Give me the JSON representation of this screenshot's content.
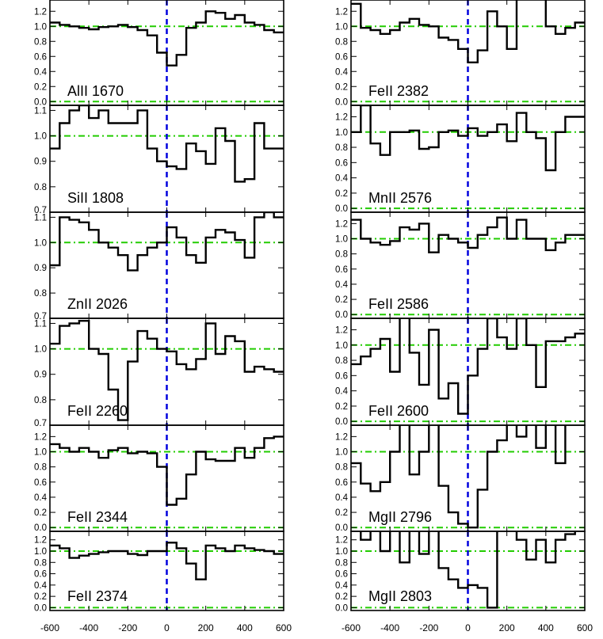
{
  "figure": {
    "type": "stacked absorption-line velocity profiles",
    "x_axis": {
      "range": [
        -600,
        600
      ],
      "ticks": [
        -600,
        -400,
        -200,
        0,
        200,
        400,
        600
      ],
      "tick_labels": [
        "-600",
        "-400",
        "-200",
        "0",
        "200",
        "400",
        "600"
      ],
      "label": ""
    },
    "colors": {
      "spectrum": "#000000",
      "zero_velocity_line": "#0000dd",
      "reference_levels": "#22cc00",
      "frame": "#000000"
    },
    "reference_line_style": "dash-dot",
    "zero_line_style": "dashed"
  },
  "chart_data": [
    {
      "type": "line",
      "panel": "AlII 1670",
      "column": "left",
      "row": 1,
      "ylim": [
        -0.05,
        1.35
      ],
      "yticks": [
        0.0,
        0.2,
        0.4,
        0.6,
        0.8,
        1.0,
        1.2
      ],
      "ytick_labels": [
        "0.0",
        "0.2",
        "0.4",
        "0.6",
        "0.8",
        "1.0",
        "1.2"
      ],
      "reference_levels": [
        0.0,
        1.0
      ],
      "x": [
        -600,
        -550,
        -500,
        -450,
        -400,
        -350,
        -300,
        -250,
        -200,
        -150,
        -100,
        -50,
        0,
        50,
        100,
        150,
        200,
        250,
        300,
        350,
        400,
        450,
        500,
        550
      ],
      "values": [
        1.05,
        1.02,
        1.0,
        0.98,
        0.96,
        0.99,
        1.0,
        1.02,
        0.99,
        0.95,
        0.88,
        0.65,
        0.48,
        0.62,
        0.98,
        1.05,
        1.2,
        1.18,
        1.1,
        1.15,
        1.05,
        1.02,
        0.95,
        0.92
      ]
    },
    {
      "type": "line",
      "panel": "SiII 1808",
      "column": "left",
      "row": 2,
      "ylim": [
        0.7,
        1.12
      ],
      "yticks": [
        0.7,
        0.8,
        0.9,
        1.0,
        1.1
      ],
      "ytick_labels": [
        "0.7",
        "0.8",
        "0.9",
        "1.0",
        "1.1"
      ],
      "reference_levels": [
        1.0
      ],
      "x": [
        -600,
        -550,
        -500,
        -450,
        -400,
        -350,
        -300,
        -250,
        -200,
        -150,
        -100,
        -50,
        0,
        50,
        100,
        150,
        200,
        250,
        300,
        350,
        400,
        450,
        500,
        550
      ],
      "values": [
        0.95,
        1.05,
        1.1,
        1.12,
        1.07,
        1.1,
        1.05,
        1.05,
        1.05,
        1.1,
        0.95,
        0.9,
        0.88,
        0.87,
        0.97,
        0.94,
        0.89,
        1.03,
        0.98,
        0.82,
        0.83,
        1.05,
        0.95,
        0.95
      ]
    },
    {
      "type": "line",
      "panel": "ZnII 2026",
      "column": "left",
      "row": 3,
      "ylim": [
        0.7,
        1.12
      ],
      "yticks": [
        0.7,
        0.8,
        0.9,
        1.0,
        1.1
      ],
      "ytick_labels": [
        "0.7",
        "0.8",
        "0.9",
        "1.0",
        "1.1"
      ],
      "reference_levels": [
        1.0
      ],
      "x": [
        -600,
        -550,
        -500,
        -450,
        -400,
        -350,
        -300,
        -250,
        -200,
        -150,
        -100,
        -50,
        0,
        50,
        100,
        150,
        200,
        250,
        300,
        350,
        400,
        450,
        500,
        550
      ],
      "values": [
        0.91,
        1.1,
        1.09,
        1.08,
        1.05,
        1.0,
        0.98,
        0.95,
        0.89,
        0.95,
        0.98,
        1.0,
        1.06,
        1.02,
        0.95,
        0.92,
        1.02,
        1.05,
        1.04,
        1.01,
        0.94,
        1.1,
        1.12,
        1.1
      ]
    },
    {
      "type": "line",
      "panel": "FeII 2260",
      "column": "left",
      "row": 4,
      "ylim": [
        0.7,
        1.12
      ],
      "yticks": [
        0.7,
        0.8,
        0.9,
        1.0,
        1.1
      ],
      "ytick_labels": [
        "0.7",
        "0.8",
        "0.9",
        "1.0",
        "1.1"
      ],
      "reference_levels": [
        1.0
      ],
      "x": [
        -600,
        -550,
        -500,
        -450,
        -400,
        -350,
        -300,
        -250,
        -200,
        -150,
        -100,
        -50,
        0,
        50,
        100,
        150,
        200,
        250,
        300,
        350,
        400,
        450,
        500,
        550
      ],
      "values": [
        1.02,
        1.09,
        1.1,
        1.11,
        1.0,
        0.98,
        0.84,
        0.72,
        0.95,
        1.07,
        1.04,
        1.0,
        0.99,
        0.94,
        0.92,
        0.96,
        1.1,
        0.98,
        1.05,
        1.03,
        0.91,
        0.93,
        0.92,
        0.91
      ]
    },
    {
      "type": "line",
      "panel": "FeII 2344",
      "column": "left",
      "row": 5,
      "ylim": [
        -0.05,
        1.35
      ],
      "yticks": [
        0.0,
        0.2,
        0.4,
        0.6,
        0.8,
        1.0,
        1.2
      ],
      "ytick_labels": [
        "0.0",
        "0.2",
        "0.4",
        "0.6",
        "0.8",
        "1.0",
        "1.2"
      ],
      "reference_levels": [
        0.0,
        1.0
      ],
      "x": [
        -600,
        -550,
        -500,
        -450,
        -400,
        -350,
        -300,
        -250,
        -200,
        -150,
        -100,
        -50,
        0,
        50,
        100,
        150,
        200,
        250,
        300,
        350,
        400,
        450,
        500,
        550
      ],
      "values": [
        1.1,
        1.05,
        1.0,
        1.05,
        1.0,
        0.92,
        1.02,
        1.05,
        0.98,
        1.0,
        0.98,
        0.8,
        0.3,
        0.38,
        0.7,
        1.0,
        0.9,
        0.88,
        0.88,
        1.05,
        0.92,
        1.05,
        1.18,
        1.2
      ]
    },
    {
      "type": "line",
      "panel": "FeII 2374",
      "column": "left",
      "row": 6,
      "ylim": [
        -0.05,
        1.35
      ],
      "yticks": [
        0.0,
        0.2,
        0.4,
        0.6,
        0.8,
        1.0,
        1.2
      ],
      "ytick_labels": [
        "0.0",
        "0.2",
        "0.4",
        "0.6",
        "0.8",
        "1.0",
        "1.2"
      ],
      "reference_levels": [
        0.0,
        1.0
      ],
      "x": [
        -600,
        -550,
        -500,
        -450,
        -400,
        -350,
        -300,
        -250,
        -200,
        -150,
        -100,
        -50,
        0,
        50,
        100,
        150,
        200,
        250,
        300,
        350,
        400,
        450,
        500,
        550
      ],
      "values": [
        1.1,
        1.05,
        0.88,
        0.92,
        0.95,
        0.98,
        1.0,
        1.0,
        0.95,
        0.93,
        1.0,
        1.0,
        1.15,
        1.05,
        0.78,
        0.5,
        1.1,
        1.05,
        1.0,
        1.1,
        1.05,
        1.02,
        1.0,
        0.95
      ]
    },
    {
      "type": "line",
      "panel": "FeII 2382",
      "column": "right",
      "row": 1,
      "ylim": [
        -0.05,
        1.35
      ],
      "yticks": [
        0.0,
        0.2,
        0.4,
        0.6,
        0.8,
        1.0,
        1.2
      ],
      "ytick_labels": [
        "0.0",
        "0.2",
        "0.4",
        "0.6",
        "0.8",
        "1.0",
        "1.2"
      ],
      "reference_levels": [
        0.0,
        1.0
      ],
      "x": [
        -600,
        -550,
        -500,
        -450,
        -400,
        -350,
        -300,
        -250,
        -200,
        -150,
        -100,
        -50,
        0,
        50,
        100,
        150,
        200,
        250,
        300,
        350,
        400,
        450,
        500,
        550
      ],
      "values": [
        1.3,
        0.98,
        0.95,
        0.9,
        0.95,
        1.05,
        1.1,
        1.02,
        1.0,
        0.85,
        0.82,
        0.7,
        0.52,
        0.68,
        1.2,
        1.0,
        0.7,
        1.4,
        1.6,
        1.8,
        1.0,
        0.9,
        0.98,
        1.05
      ]
    },
    {
      "type": "line",
      "panel": "MnII 2576",
      "column": "right",
      "row": 2,
      "ylim": [
        -0.05,
        1.35
      ],
      "yticks": [
        0.0,
        0.2,
        0.4,
        0.6,
        0.8,
        1.0,
        1.2
      ],
      "ytick_labels": [
        "0.0",
        "0.2",
        "0.4",
        "0.6",
        "0.8",
        "1.0",
        "1.2"
      ],
      "reference_levels": [
        0.0,
        1.0
      ],
      "x": [
        -600,
        -550,
        -500,
        -450,
        -400,
        -350,
        -300,
        -250,
        -200,
        -150,
        -100,
        -50,
        0,
        50,
        100,
        150,
        200,
        250,
        300,
        350,
        400,
        450,
        500,
        550
      ],
      "values": [
        1.0,
        1.35,
        0.85,
        0.7,
        1.0,
        1.0,
        1.02,
        0.78,
        0.8,
        1.0,
        1.02,
        0.95,
        1.05,
        0.95,
        1.0,
        1.1,
        0.88,
        1.25,
        1.0,
        0.92,
        0.5,
        1.0,
        1.2,
        1.2
      ]
    },
    {
      "type": "line",
      "panel": "FeII 2586",
      "column": "right",
      "row": 3,
      "ylim": [
        -0.05,
        1.35
      ],
      "yticks": [
        0.0,
        0.2,
        0.4,
        0.6,
        0.8,
        1.0,
        1.2
      ],
      "ytick_labels": [
        "0.0",
        "0.2",
        "0.4",
        "0.6",
        "0.8",
        "1.0",
        "1.2"
      ],
      "reference_levels": [
        0.0,
        1.0
      ],
      "x": [
        -600,
        -550,
        -500,
        -450,
        -400,
        -350,
        -300,
        -250,
        -200,
        -150,
        -100,
        -50,
        0,
        50,
        100,
        150,
        200,
        250,
        300,
        350,
        400,
        450,
        500,
        550
      ],
      "values": [
        1.25,
        1.0,
        0.95,
        0.92,
        0.97,
        1.15,
        1.12,
        1.2,
        0.82,
        1.05,
        1.0,
        0.95,
        0.88,
        1.05,
        1.15,
        1.28,
        1.0,
        1.25,
        1.0,
        1.0,
        0.85,
        0.95,
        1.05,
        1.05
      ]
    },
    {
      "type": "line",
      "panel": "FeII 2600",
      "column": "right",
      "row": 4,
      "ylim": [
        -0.05,
        1.35
      ],
      "yticks": [
        0.0,
        0.2,
        0.4,
        0.6,
        0.8,
        1.0,
        1.2
      ],
      "ytick_labels": [
        "0.0",
        "0.2",
        "0.4",
        "0.6",
        "0.8",
        "1.0",
        "1.2"
      ],
      "reference_levels": [
        0.0,
        1.0
      ],
      "x": [
        -600,
        -550,
        -500,
        -450,
        -400,
        -350,
        -300,
        -250,
        -200,
        -150,
        -100,
        -50,
        0,
        50,
        100,
        150,
        200,
        250,
        300,
        350,
        400,
        450,
        500,
        550
      ],
      "values": [
        0.75,
        0.85,
        0.95,
        1.08,
        0.65,
        1.4,
        0.9,
        0.48,
        1.2,
        0.3,
        0.5,
        0.1,
        0.6,
        0.95,
        1.35,
        1.1,
        0.95,
        1.35,
        1.0,
        0.45,
        1.05,
        1.05,
        1.1,
        1.15
      ]
    },
    {
      "type": "line",
      "panel": "MgII 2796",
      "column": "right",
      "row": 5,
      "ylim": [
        -0.05,
        1.35
      ],
      "yticks": [
        0.0,
        0.2,
        0.4,
        0.6,
        0.8,
        1.0,
        1.2
      ],
      "ytick_labels": [
        "0.0",
        "0.2",
        "0.4",
        "0.6",
        "0.8",
        "1.0",
        "1.2"
      ],
      "reference_levels": [
        0.0,
        1.0
      ],
      "x": [
        -600,
        -550,
        -500,
        -450,
        -400,
        -350,
        -300,
        -250,
        -200,
        -150,
        -100,
        -50,
        0,
        50,
        100,
        150,
        200,
        250,
        300,
        350,
        400,
        450,
        500,
        550
      ],
      "values": [
        0.85,
        0.58,
        0.48,
        0.6,
        1.0,
        1.45,
        0.7,
        1.0,
        1.45,
        0.55,
        0.2,
        0.05,
        0.0,
        0.5,
        1.0,
        1.15,
        1.4,
        1.2,
        1.4,
        1.05,
        1.4,
        0.85,
        1.4,
        1.4
      ]
    },
    {
      "type": "line",
      "panel": "MgII 2803",
      "column": "right",
      "row": 6,
      "ylim": [
        -0.05,
        1.35
      ],
      "yticks": [
        0.0,
        0.2,
        0.4,
        0.6,
        0.8,
        1.0,
        1.2
      ],
      "ytick_labels": [
        "0.0",
        "0.2",
        "0.4",
        "0.6",
        "0.8",
        "1.0",
        "1.2"
      ],
      "reference_levels": [
        0.0,
        1.0
      ],
      "x": [
        -600,
        -550,
        -500,
        -450,
        -400,
        -350,
        -300,
        -250,
        -200,
        -150,
        -100,
        -50,
        0,
        50,
        100,
        150,
        200,
        250,
        300,
        350,
        400,
        450,
        500,
        550
      ],
      "values": [
        1.4,
        1.2,
        1.4,
        1.0,
        1.4,
        0.8,
        1.4,
        0.95,
        1.4,
        0.7,
        0.5,
        0.35,
        0.4,
        0.35,
        0.0,
        1.4,
        1.4,
        1.2,
        0.85,
        1.2,
        0.8,
        1.2,
        1.3,
        1.4
      ]
    }
  ]
}
